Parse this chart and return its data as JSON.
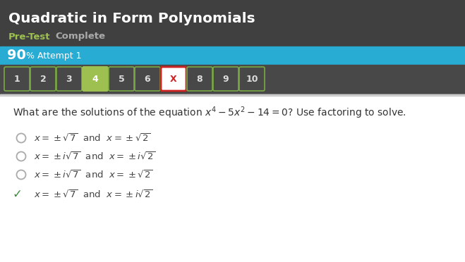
{
  "title": "Quadratic in Form Polynomials",
  "subtitle_left": "Pre-Test",
  "subtitle_right": "Complete",
  "score_percent": "90",
  "score_label": "% Attempt 1",
  "nav_buttons": [
    "1",
    "2",
    "3",
    "4",
    "5",
    "6",
    "X",
    "8",
    "9",
    "10"
  ],
  "nav_active": 3,
  "nav_wrong": 6,
  "correct_option": 3,
  "bg_dark": "#484848",
  "bg_header": "#404040",
  "bg_score": "#29acd4",
  "bg_white": "#ffffff",
  "nav_default_bg": "#484848",
  "nav_default_border": "#7aaa44",
  "nav_active_bg": "#9dc050",
  "nav_active_border": "#9dc050",
  "nav_wrong_bg": "#ffffff",
  "nav_wrong_border": "#cc2222",
  "nav_wrong_color": "#cc2222",
  "nav_text_color": "#dddddd",
  "title_color": "#ffffff",
  "pretest_color": "#9dc050",
  "complete_color": "#aaaaaa",
  "score_text_color": "#ffffff",
  "question_color": "#333333",
  "option_color": "#444444",
  "correct_color": "#3a8a3a",
  "radio_color": "#aaaaaa"
}
